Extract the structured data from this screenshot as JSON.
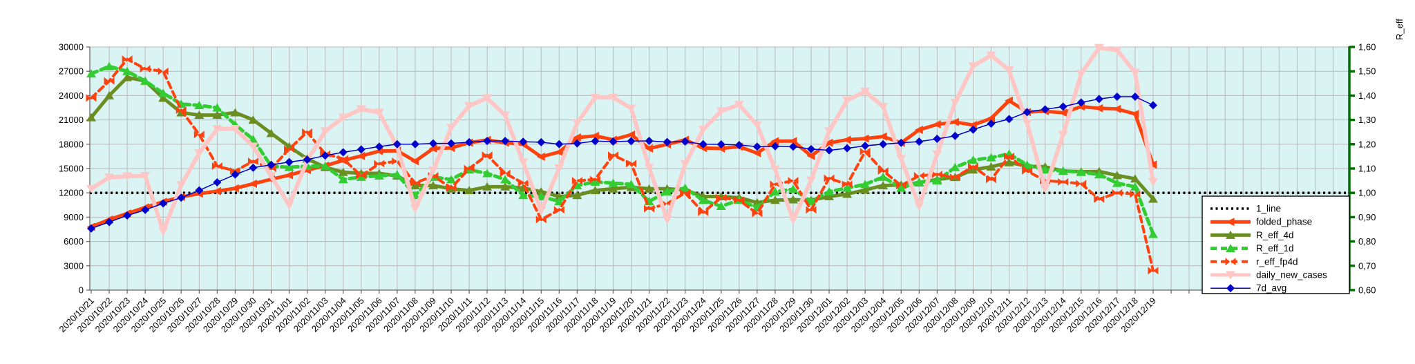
{
  "right_axis_title": "R_eff",
  "colors": {
    "plot_bg": "#daf4f4",
    "grid": "#b9b9b9",
    "axis": "#666666",
    "right_axis": "#007000",
    "one_line": "#000000",
    "folded_phase": "#ff420e",
    "r_eff_4d": "#6b8e23",
    "r_eff_1d": "#33cc33",
    "r_eff_fp4d": "#ff420e",
    "daily_new_cases": "#ffc6c6",
    "seven_d_avg": "#0000cc",
    "legend_bg": "#ffffff",
    "legend_border": "#000000"
  },
  "chart_data": {
    "type": "line",
    "title": "",
    "xlabel": "",
    "ylabel_right": "R_eff",
    "grid": true,
    "legend_position": "inside-bottom-right",
    "left_axis": {
      "min": 0,
      "max": 30000,
      "step": 3000,
      "tick_labels": [
        "0",
        "3000",
        "6000",
        "9000",
        "12000",
        "15000",
        "18000",
        "21000",
        "24000",
        "27000",
        "30000"
      ]
    },
    "right_axis": {
      "min": 0.6,
      "max": 1.6,
      "step": 0.1,
      "title": "R_eff",
      "tick_labels": [
        "0,60",
        "0,70",
        "0,80",
        "0,90",
        "1,00",
        "1,10",
        "1,20",
        "1,30",
        "1,40",
        "1,50",
        "1,60"
      ]
    },
    "x_labels": [
      "2020/10/21",
      "2020/10/22",
      "2020/10/23",
      "2020/10/24",
      "2020/10/25",
      "2020/10/26",
      "2020/10/27",
      "2020/10/28",
      "2020/10/29",
      "2020/10/30",
      "2020/10/31",
      "2020/11/01",
      "2020/11/02",
      "2020/11/03",
      "2020/11/04",
      "2020/11/05",
      "2020/11/06",
      "2020/11/07",
      "2020/11/08",
      "2020/11/09",
      "2020/11/10",
      "2020/11/11",
      "2020/11/12",
      "2020/11/13",
      "2020/11/14",
      "2020/11/15",
      "2020/11/16",
      "2020/11/17",
      "2020/11/18",
      "2020/11/19",
      "2020/11/20",
      "2020/11/21",
      "2020/11/22",
      "2020/11/23",
      "2020/11/24",
      "2020/11/25",
      "2020/11/26",
      "2020/11/27",
      "2020/11/28",
      "2020/11/29",
      "2020/11/30",
      "2020/12/01",
      "2020/12/02",
      "2020/12/03",
      "2020/12/04",
      "2020/12/05",
      "2020/12/06",
      "2020/12/07",
      "2020/12/08",
      "2020/12/09",
      "2020/12/10",
      "2020/12/11",
      "2020/12/12",
      "2020/12/13",
      "2020/12/14",
      "2020/12/15",
      "2020/12/16",
      "2020/12/17",
      "2020/12/18",
      "2020/12/19"
    ],
    "series": [
      {
        "name": "1_line",
        "axis": "right",
        "style": "dotted",
        "width": 3.5,
        "marker": "none",
        "color_key": "one_line",
        "constant": 1.0,
        "full_width": true,
        "values": []
      },
      {
        "name": "folded_phase",
        "axis": "left",
        "style": "solid",
        "width": 5,
        "marker": "triangle-left",
        "color_key": "folded_phase",
        "values": [
          7800,
          8700,
          9450,
          10200,
          10900,
          11500,
          11900,
          12210,
          12560,
          13120,
          13670,
          14180,
          14810,
          15350,
          16000,
          16550,
          17150,
          17200,
          15900,
          17470,
          17550,
          18190,
          18530,
          18190,
          17980,
          16450,
          17040,
          18830,
          19030,
          18550,
          19180,
          17470,
          17980,
          18550,
          17530,
          17470,
          17700,
          16900,
          18380,
          18380,
          16560,
          18170,
          18550,
          18700,
          18950,
          18170,
          19770,
          20450,
          20740,
          20370,
          21200,
          23380,
          21960,
          22070,
          21880,
          22640,
          22440,
          22350,
          21730,
          15480
        ]
      },
      {
        "name": "R_eff_4d",
        "axis": "right",
        "style": "solid",
        "width": 5,
        "marker": "triangle-up",
        "color_key": "r_eff_4d",
        "values": [
          1.31,
          1.4,
          1.475,
          1.46,
          1.39,
          1.33,
          1.32,
          1.32,
          1.33,
          1.3,
          1.245,
          1.19,
          1.14,
          1.105,
          1.085,
          1.08,
          1.08,
          1.07,
          1.03,
          1.03,
          1.017,
          1.01,
          1.025,
          1.025,
          1.02,
          1.005,
          0.985,
          0.99,
          1.01,
          1.017,
          1.023,
          1.017,
          1.017,
          1.012,
          0.985,
          0.985,
          0.98,
          0.96,
          0.97,
          0.972,
          0.97,
          0.985,
          0.995,
          1.012,
          1.03,
          1.033,
          1.042,
          1.055,
          1.064,
          1.095,
          1.107,
          1.125,
          1.11,
          1.107,
          1.09,
          1.087,
          1.088,
          1.072,
          1.058,
          0.975
        ]
      },
      {
        "name": "R_eff_1d",
        "axis": "right",
        "style": "dashed",
        "width": 5,
        "marker": "triangle-up",
        "color_key": "r_eff_1d",
        "values": [
          1.49,
          1.52,
          1.5,
          1.46,
          1.41,
          1.365,
          1.36,
          1.35,
          1.28,
          1.22,
          1.11,
          1.105,
          1.11,
          1.11,
          1.055,
          1.065,
          1.07,
          1.075,
          0.99,
          1.065,
          1.055,
          1.095,
          1.08,
          1.055,
          0.99,
          0.985,
          0.965,
          1.03,
          1.045,
          1.04,
          1.035,
          0.965,
          1.005,
          1.02,
          0.97,
          0.945,
          0.97,
          0.94,
          1.005,
          1.015,
          0.965,
          1.005,
          1.02,
          1.035,
          1.065,
          1.02,
          1.045,
          1.05,
          1.105,
          1.135,
          1.145,
          1.16,
          1.115,
          1.095,
          1.09,
          1.085,
          1.075,
          1.04,
          1.025,
          0.83
        ]
      },
      {
        "name": "r_eff_fp4d",
        "axis": "right",
        "style": "dashed",
        "width": 4,
        "marker": "bowtie",
        "color_key": "r_eff_fp4d",
        "values": [
          1.39,
          1.46,
          1.55,
          1.51,
          1.5,
          1.34,
          1.24,
          1.11,
          1.09,
          1.13,
          1.1,
          1.18,
          1.25,
          1.16,
          1.14,
          1.07,
          1.12,
          1.13,
          1.04,
          1.07,
          1.02,
          1.1,
          1.155,
          1.08,
          1.04,
          0.89,
          0.93,
          1.05,
          1.055,
          1.155,
          1.12,
          0.935,
          0.955,
          1.0,
          0.92,
          0.98,
          0.97,
          0.915,
          1.035,
          1.05,
          0.93,
          1.06,
          1.035,
          1.17,
          1.09,
          1.03,
          1.07,
          1.076,
          1.064,
          1.108,
          1.055,
          1.15,
          1.09,
          1.05,
          1.045,
          1.038,
          0.974,
          1.0,
          0.995,
          0.68
        ]
      },
      {
        "name": "daily_new_cases",
        "axis": "left",
        "style": "solid",
        "width": 6,
        "marker": "triangle-down",
        "color_key": "daily_new_cases",
        "values": [
          12500,
          13900,
          14050,
          14100,
          7250,
          12950,
          16900,
          19900,
          19900,
          17730,
          14060,
          10480,
          16000,
          19600,
          21300,
          22330,
          21900,
          17700,
          10060,
          14800,
          20030,
          22750,
          23690,
          21560,
          15770,
          9800,
          15060,
          20620,
          23770,
          23770,
          22440,
          15100,
          8690,
          15540,
          19800,
          22100,
          22870,
          20370,
          14910,
          8660,
          13550,
          19600,
          23430,
          24510,
          22640,
          16190,
          10370,
          16760,
          23150,
          27640,
          28980,
          27130,
          20600,
          12500,
          19180,
          26700,
          29900,
          29600,
          26850,
          13350
        ]
      },
      {
        "name": "7d_avg",
        "axis": "left",
        "style": "solid",
        "width": 1.5,
        "marker": "diamond",
        "color_key": "seven_d_avg",
        "values": [
          7600,
          8400,
          9200,
          9900,
          10700,
          11400,
          12300,
          13300,
          14260,
          15100,
          15460,
          15800,
          16100,
          16600,
          17000,
          17350,
          17700,
          18000,
          18000,
          18100,
          18100,
          18250,
          18400,
          18400,
          18300,
          18250,
          18000,
          18100,
          18380,
          18320,
          18380,
          18410,
          18270,
          18320,
          18000,
          17980,
          17900,
          17700,
          17750,
          17700,
          17400,
          17250,
          17500,
          17800,
          18000,
          18170,
          18320,
          18660,
          19030,
          19800,
          20540,
          21100,
          21960,
          22300,
          22640,
          23150,
          23580,
          23860,
          23860,
          22810
        ]
      }
    ],
    "legend_entries": [
      "1_line",
      "folded_phase",
      "R_eff_4d",
      "R_eff_1d",
      "r_eff_fp4d",
      "daily_new_cases",
      "7d_avg"
    ]
  }
}
